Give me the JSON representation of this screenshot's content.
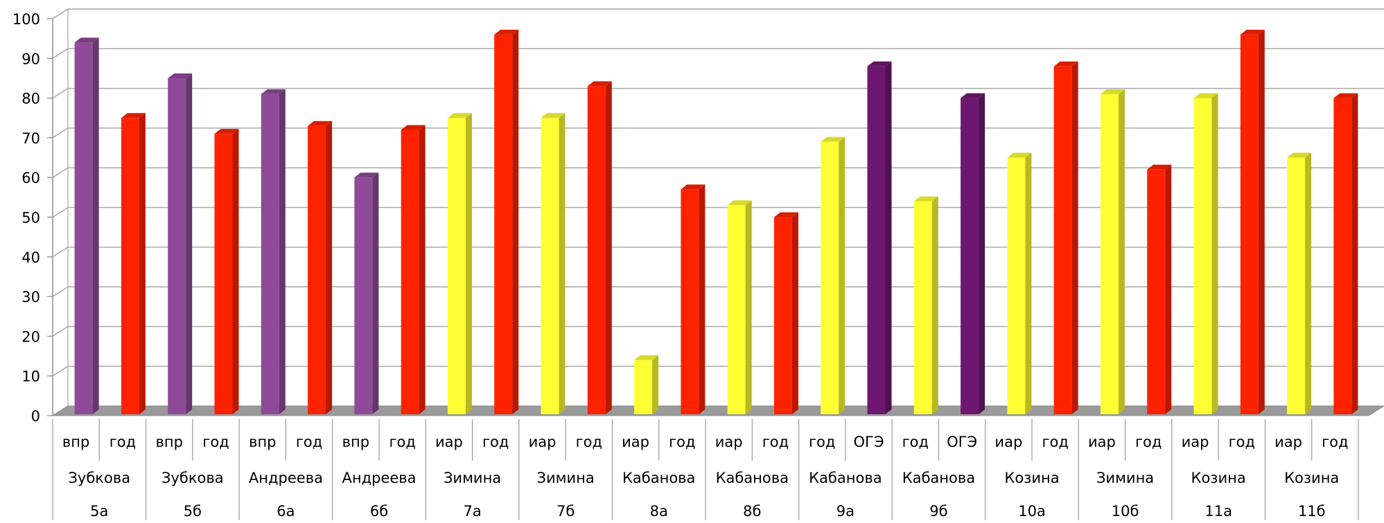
{
  "chart_data": {
    "type": "bar",
    "ylim": [
      0,
      100
    ],
    "yticks": [
      "0",
      "10",
      "20",
      "30",
      "40",
      "50",
      "60",
      "70",
      "80",
      "90",
      "100"
    ],
    "grid": true,
    "legend": "none",
    "groups": [
      {
        "cls": "5а",
        "teacher": "Зубкова",
        "bars": [
          {
            "label": "впр",
            "value": 94,
            "color": "#8e4a98"
          },
          {
            "label": "год",
            "value": 75,
            "color": "#ff2200"
          }
        ]
      },
      {
        "cls": "5б",
        "teacher": "Зубкова",
        "bars": [
          {
            "label": "впр",
            "value": 85,
            "color": "#8e4a98"
          },
          {
            "label": "год",
            "value": 71,
            "color": "#ff2200"
          }
        ]
      },
      {
        "cls": "6а",
        "teacher": "Андреева",
        "bars": [
          {
            "label": "впр",
            "value": 81,
            "color": "#8e4a98"
          },
          {
            "label": "год",
            "value": 73,
            "color": "#ff2200"
          }
        ]
      },
      {
        "cls": "6б",
        "teacher": "Андреева",
        "bars": [
          {
            "label": "впр",
            "value": 60,
            "color": "#8e4a98"
          },
          {
            "label": "год",
            "value": 72,
            "color": "#ff2200"
          }
        ]
      },
      {
        "cls": "7а",
        "teacher": "Зимина",
        "bars": [
          {
            "label": "иар",
            "value": 75,
            "color": "#ffff33"
          },
          {
            "label": "год",
            "value": 96,
            "color": "#ff2200"
          }
        ]
      },
      {
        "cls": "7б",
        "teacher": "Зимина",
        "bars": [
          {
            "label": "иар",
            "value": 75,
            "color": "#ffff33"
          },
          {
            "label": "год",
            "value": 83,
            "color": "#ff2200"
          }
        ]
      },
      {
        "cls": "8а",
        "teacher": "Кабанова",
        "bars": [
          {
            "label": "иар",
            "value": 14,
            "color": "#ffff33"
          },
          {
            "label": "год",
            "value": 57,
            "color": "#ff2200"
          }
        ]
      },
      {
        "cls": "8б",
        "teacher": "Кабанова",
        "bars": [
          {
            "label": "иар",
            "value": 53,
            "color": "#ffff33"
          },
          {
            "label": "год",
            "value": 50,
            "color": "#ff2200"
          }
        ]
      },
      {
        "cls": "9а",
        "teacher": "Кабанова",
        "bars": [
          {
            "label": "год",
            "value": 69,
            "color": "#ffff33"
          },
          {
            "label": "ОГЭ",
            "value": 88,
            "color": "#6e1770"
          }
        ]
      },
      {
        "cls": "9б",
        "teacher": "Кабанова",
        "bars": [
          {
            "label": "год",
            "value": 54,
            "color": "#ffff33"
          },
          {
            "label": "ОГЭ",
            "value": 80,
            "color": "#6e1770"
          }
        ]
      },
      {
        "cls": "10а",
        "teacher": "Козина",
        "bars": [
          {
            "label": "иар",
            "value": 65,
            "color": "#ffff33"
          },
          {
            "label": "год",
            "value": 88,
            "color": "#ff2200"
          }
        ]
      },
      {
        "cls": "10б",
        "teacher": "Зимина",
        "bars": [
          {
            "label": "иар",
            "value": 81,
            "color": "#ffff33"
          },
          {
            "label": "год",
            "value": 62,
            "color": "#ff2200"
          }
        ]
      },
      {
        "cls": "11а",
        "teacher": "Козина",
        "bars": [
          {
            "label": "иар",
            "value": 80,
            "color": "#ffff33"
          },
          {
            "label": "год",
            "value": 96,
            "color": "#ff2200"
          }
        ]
      },
      {
        "cls": "11б",
        "teacher": "Козина",
        "bars": [
          {
            "label": "иар",
            "value": 65,
            "color": "#ffff33"
          },
          {
            "label": "год",
            "value": 80,
            "color": "#ff2200"
          }
        ]
      }
    ]
  }
}
